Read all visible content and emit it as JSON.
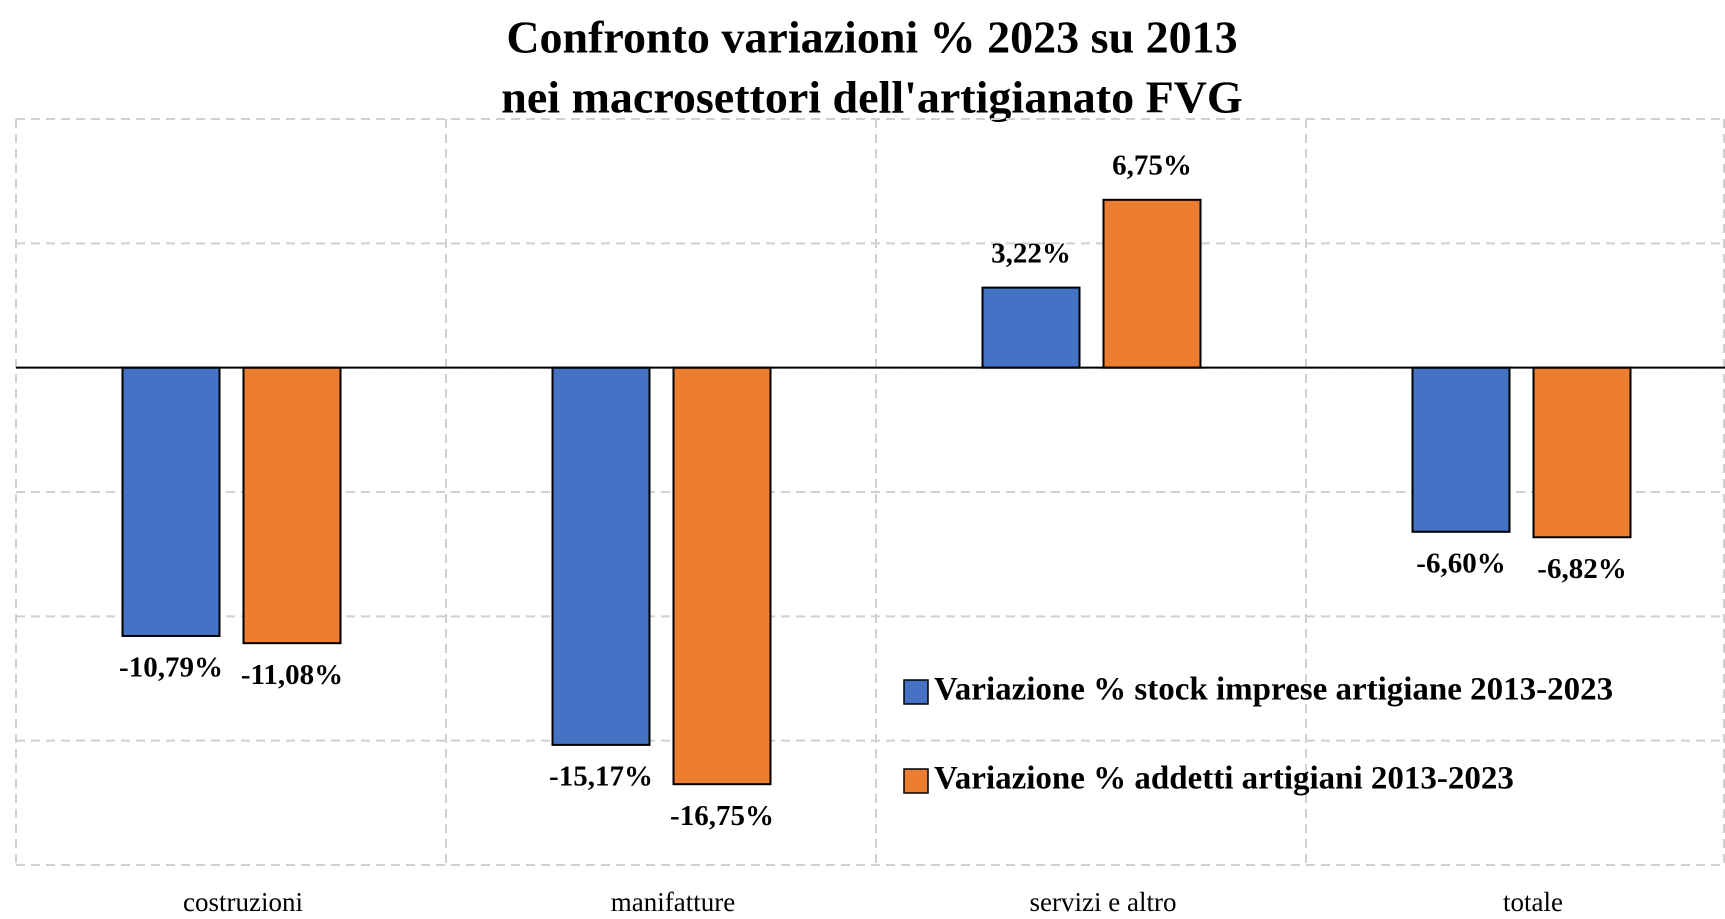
{
  "chart_data": {
    "type": "bar",
    "title": [
      "Confronto variazioni % 2023 su 2013",
      "nei macrosettori dell'artigianato FVG"
    ],
    "categories": [
      "costruzioni",
      "manifatture",
      "servizi e altro",
      "totale"
    ],
    "series": [
      {
        "name": "Variazione % stock imprese artigiane 2013-2023",
        "color": "#4472c4",
        "values": [
          -10.79,
          -15.17,
          3.22,
          -6.6
        ],
        "value_labels": [
          "-10,79%",
          "-15,17%",
          "3,22%",
          "-6,60%"
        ]
      },
      {
        "name": "Variazione % addetti artigiani 2013-2023",
        "color": "#ed7d31",
        "values": [
          -11.08,
          -16.75,
          6.75,
          -6.82
        ],
        "value_labels": [
          "-11,08%",
          "-16,75%",
          "6,75%",
          "-6,82%"
        ]
      }
    ],
    "ylim": [
      -20,
      10
    ],
    "yticks": [
      -20,
      -15,
      -10,
      -5,
      0,
      5,
      10
    ],
    "grid": true,
    "legend": "lower right"
  }
}
